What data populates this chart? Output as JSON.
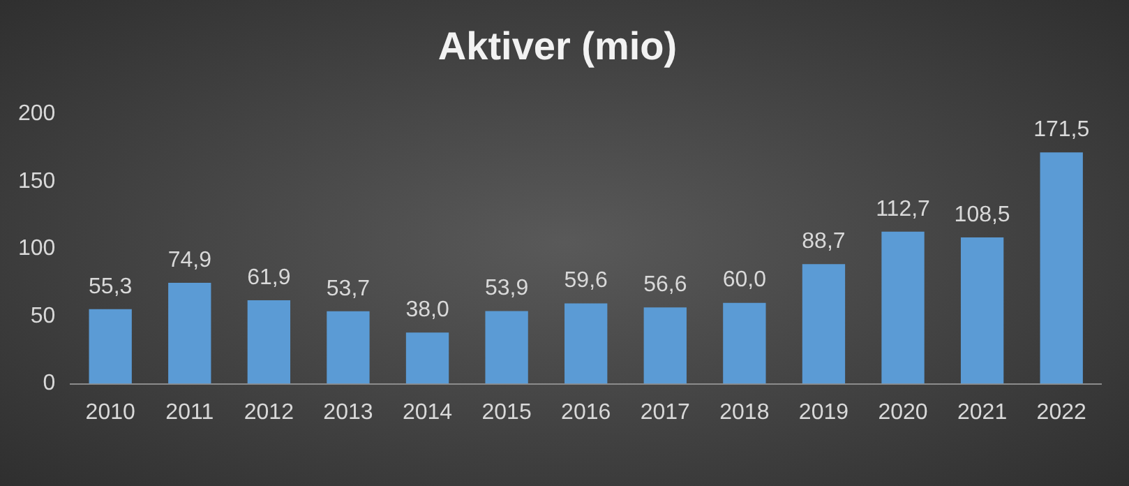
{
  "chart_data": {
    "type": "bar",
    "title": "Aktiver (mio)",
    "categories": [
      "2010",
      "2011",
      "2012",
      "2013",
      "2014",
      "2015",
      "2016",
      "2017",
      "2018",
      "2019",
      "2020",
      "2021",
      "2022"
    ],
    "values": [
      55.3,
      74.9,
      61.9,
      53.7,
      38.0,
      53.9,
      59.6,
      56.6,
      60.0,
      88.7,
      112.7,
      108.5,
      171.5
    ],
    "value_labels": [
      "55,3",
      "74,9",
      "61,9",
      "53,7",
      "38,0",
      "53,9",
      "59,6",
      "56,6",
      "60,0",
      "88,7",
      "112,7",
      "108,5",
      "171,5"
    ],
    "color": "#5b9bd5",
    "ylim": [
      0,
      200
    ],
    "yticks": [
      0,
      50,
      100,
      150,
      200
    ],
    "grid": false,
    "legend": false
  }
}
